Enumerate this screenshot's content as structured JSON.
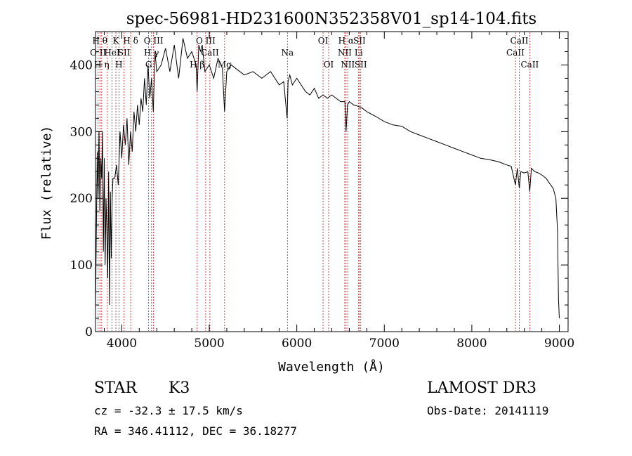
{
  "chart_data": {
    "type": "line",
    "title": "spec-56981-HD231600N352358V01_sp14-104.fits",
    "xlabel": "Wavelength (Å)",
    "ylabel": "Flux (relative)",
    "xlim": [
      3700,
      9100
    ],
    "ylim": [
      0,
      450
    ],
    "xticks": [
      4000,
      5000,
      6000,
      7000,
      8000,
      9000
    ],
    "yticks": [
      0,
      100,
      200,
      300,
      400
    ],
    "grid": false,
    "series": [
      {
        "x": [
          3700,
          3710,
          3720,
          3730,
          3740,
          3750,
          3760,
          3770,
          3780,
          3790,
          3800,
          3810,
          3820,
          3830,
          3840,
          3850,
          3860,
          3870,
          3880,
          3890,
          3900,
          3920,
          3940,
          3960,
          3980,
          4000,
          4020,
          4040,
          4060,
          4080,
          4100,
          4120,
          4140,
          4160,
          4180,
          4200,
          4220,
          4240,
          4260,
          4280,
          4300,
          4320,
          4340,
          4360,
          4380,
          4400,
          4450,
          4500,
          4550,
          4600,
          4650,
          4700,
          4750,
          4800,
          4850,
          4861,
          4880,
          4900,
          4920,
          4950,
          5000,
          5050,
          5100,
          5150,
          5175,
          5200,
          5250,
          5300,
          5400,
          5500,
          5600,
          5700,
          5800,
          5850,
          5890,
          5900,
          5920,
          5950,
          6000,
          6050,
          6100,
          6150,
          6200,
          6250,
          6300,
          6350,
          6400,
          6450,
          6500,
          6550,
          6563,
          6580,
          6600,
          6650,
          6700,
          6750,
          6800,
          6900,
          7000,
          7100,
          7200,
          7300,
          7400,
          7500,
          7600,
          7700,
          7800,
          7900,
          8000,
          8100,
          8200,
          8300,
          8400,
          8450,
          8498,
          8520,
          8542,
          8560,
          8600,
          8640,
          8662,
          8680,
          8720,
          8760,
          8800,
          8850,
          8900,
          8930,
          8960,
          8980,
          8990,
          9000
        ],
        "values": [
          30,
          150,
          270,
          200,
          300,
          180,
          260,
          230,
          300,
          120,
          260,
          100,
          200,
          150,
          80,
          240,
          40,
          210,
          110,
          200,
          230,
          230,
          250,
          220,
          300,
          260,
          310,
          280,
          320,
          250,
          300,
          270,
          330,
          300,
          340,
          310,
          350,
          330,
          380,
          340,
          400,
          350,
          380,
          330,
          420,
          390,
          400,
          425,
          390,
          430,
          380,
          440,
          410,
          420,
          400,
          360,
          430,
          420,
          430,
          390,
          400,
          380,
          410,
          395,
          330,
          390,
          400,
          395,
          385,
          390,
          380,
          390,
          370,
          375,
          320,
          375,
          385,
          370,
          380,
          370,
          360,
          355,
          365,
          350,
          355,
          350,
          355,
          350,
          345,
          345,
          300,
          340,
          345,
          340,
          338,
          335,
          330,
          323,
          315,
          310,
          308,
          300,
          295,
          290,
          285,
          280,
          275,
          270,
          265,
          260,
          258,
          255,
          250,
          248,
          220,
          245,
          215,
          240,
          238,
          240,
          210,
          245,
          240,
          238,
          235,
          230,
          220,
          215,
          200,
          150,
          50,
          20
        ]
      }
    ],
    "line_annotations": [
      {
        "x": 3730,
        "label": "O II",
        "row": 2
      },
      {
        "x": 3750,
        "label": "H θ",
        "row": 1
      },
      {
        "x": 3771,
        "label": "H η",
        "row": 3
      },
      {
        "x": 3835,
        "label": "",
        "row": 0
      },
      {
        "x": 3889,
        "label": "HeI",
        "row": 2
      },
      {
        "x": 3933,
        "label": "K",
        "row": 1
      },
      {
        "x": 3968,
        "label": "H",
        "row": 3
      },
      {
        "x": 4026,
        "label": "SII",
        "row": 2
      },
      {
        "x": 4102,
        "label": "H δ",
        "row": 1
      },
      {
        "x": 4307,
        "label": "G",
        "row": 3
      },
      {
        "x": 4340,
        "label": "H γ",
        "row": 2
      },
      {
        "x": 4363,
        "label": "O III",
        "row": 1
      },
      {
        "x": 4861,
        "label": "H β",
        "row": 3
      },
      {
        "x": 4959,
        "label": "O III",
        "row": 1
      },
      {
        "x": 5007,
        "label": "CaII",
        "row": 2
      },
      {
        "x": 5175,
        "label": "Mg",
        "row": 3
      },
      {
        "x": 5893,
        "label": "Na",
        "row": 2
      },
      {
        "x": 6300,
        "label": "OI",
        "row": 1
      },
      {
        "x": 6364,
        "label": "OI",
        "row": 3
      },
      {
        "x": 6548,
        "label": "NII",
        "row": 2
      },
      {
        "x": 6563,
        "label": "H α",
        "row": 1
      },
      {
        "x": 6583,
        "label": "NII",
        "row": 3
      },
      {
        "x": 6707,
        "label": "Li",
        "row": 2
      },
      {
        "x": 6716,
        "label": "SII",
        "row": 1
      },
      {
        "x": 6731,
        "label": "SII",
        "row": 3
      },
      {
        "x": 8498,
        "label": "CaII",
        "row": 2
      },
      {
        "x": 8542,
        "label": "CaII",
        "row": 1
      },
      {
        "x": 8662,
        "label": "CaII",
        "row": 3
      }
    ]
  },
  "info": {
    "object_class": "STAR",
    "subclass": "K3",
    "survey": "LAMOST DR3",
    "redshift": "cz = -32.3 ± 17.5 km/s",
    "obs_date": "Obs-Date: 20141119",
    "coordinates": "RA = 346.41112, DEC =  36.18277"
  }
}
